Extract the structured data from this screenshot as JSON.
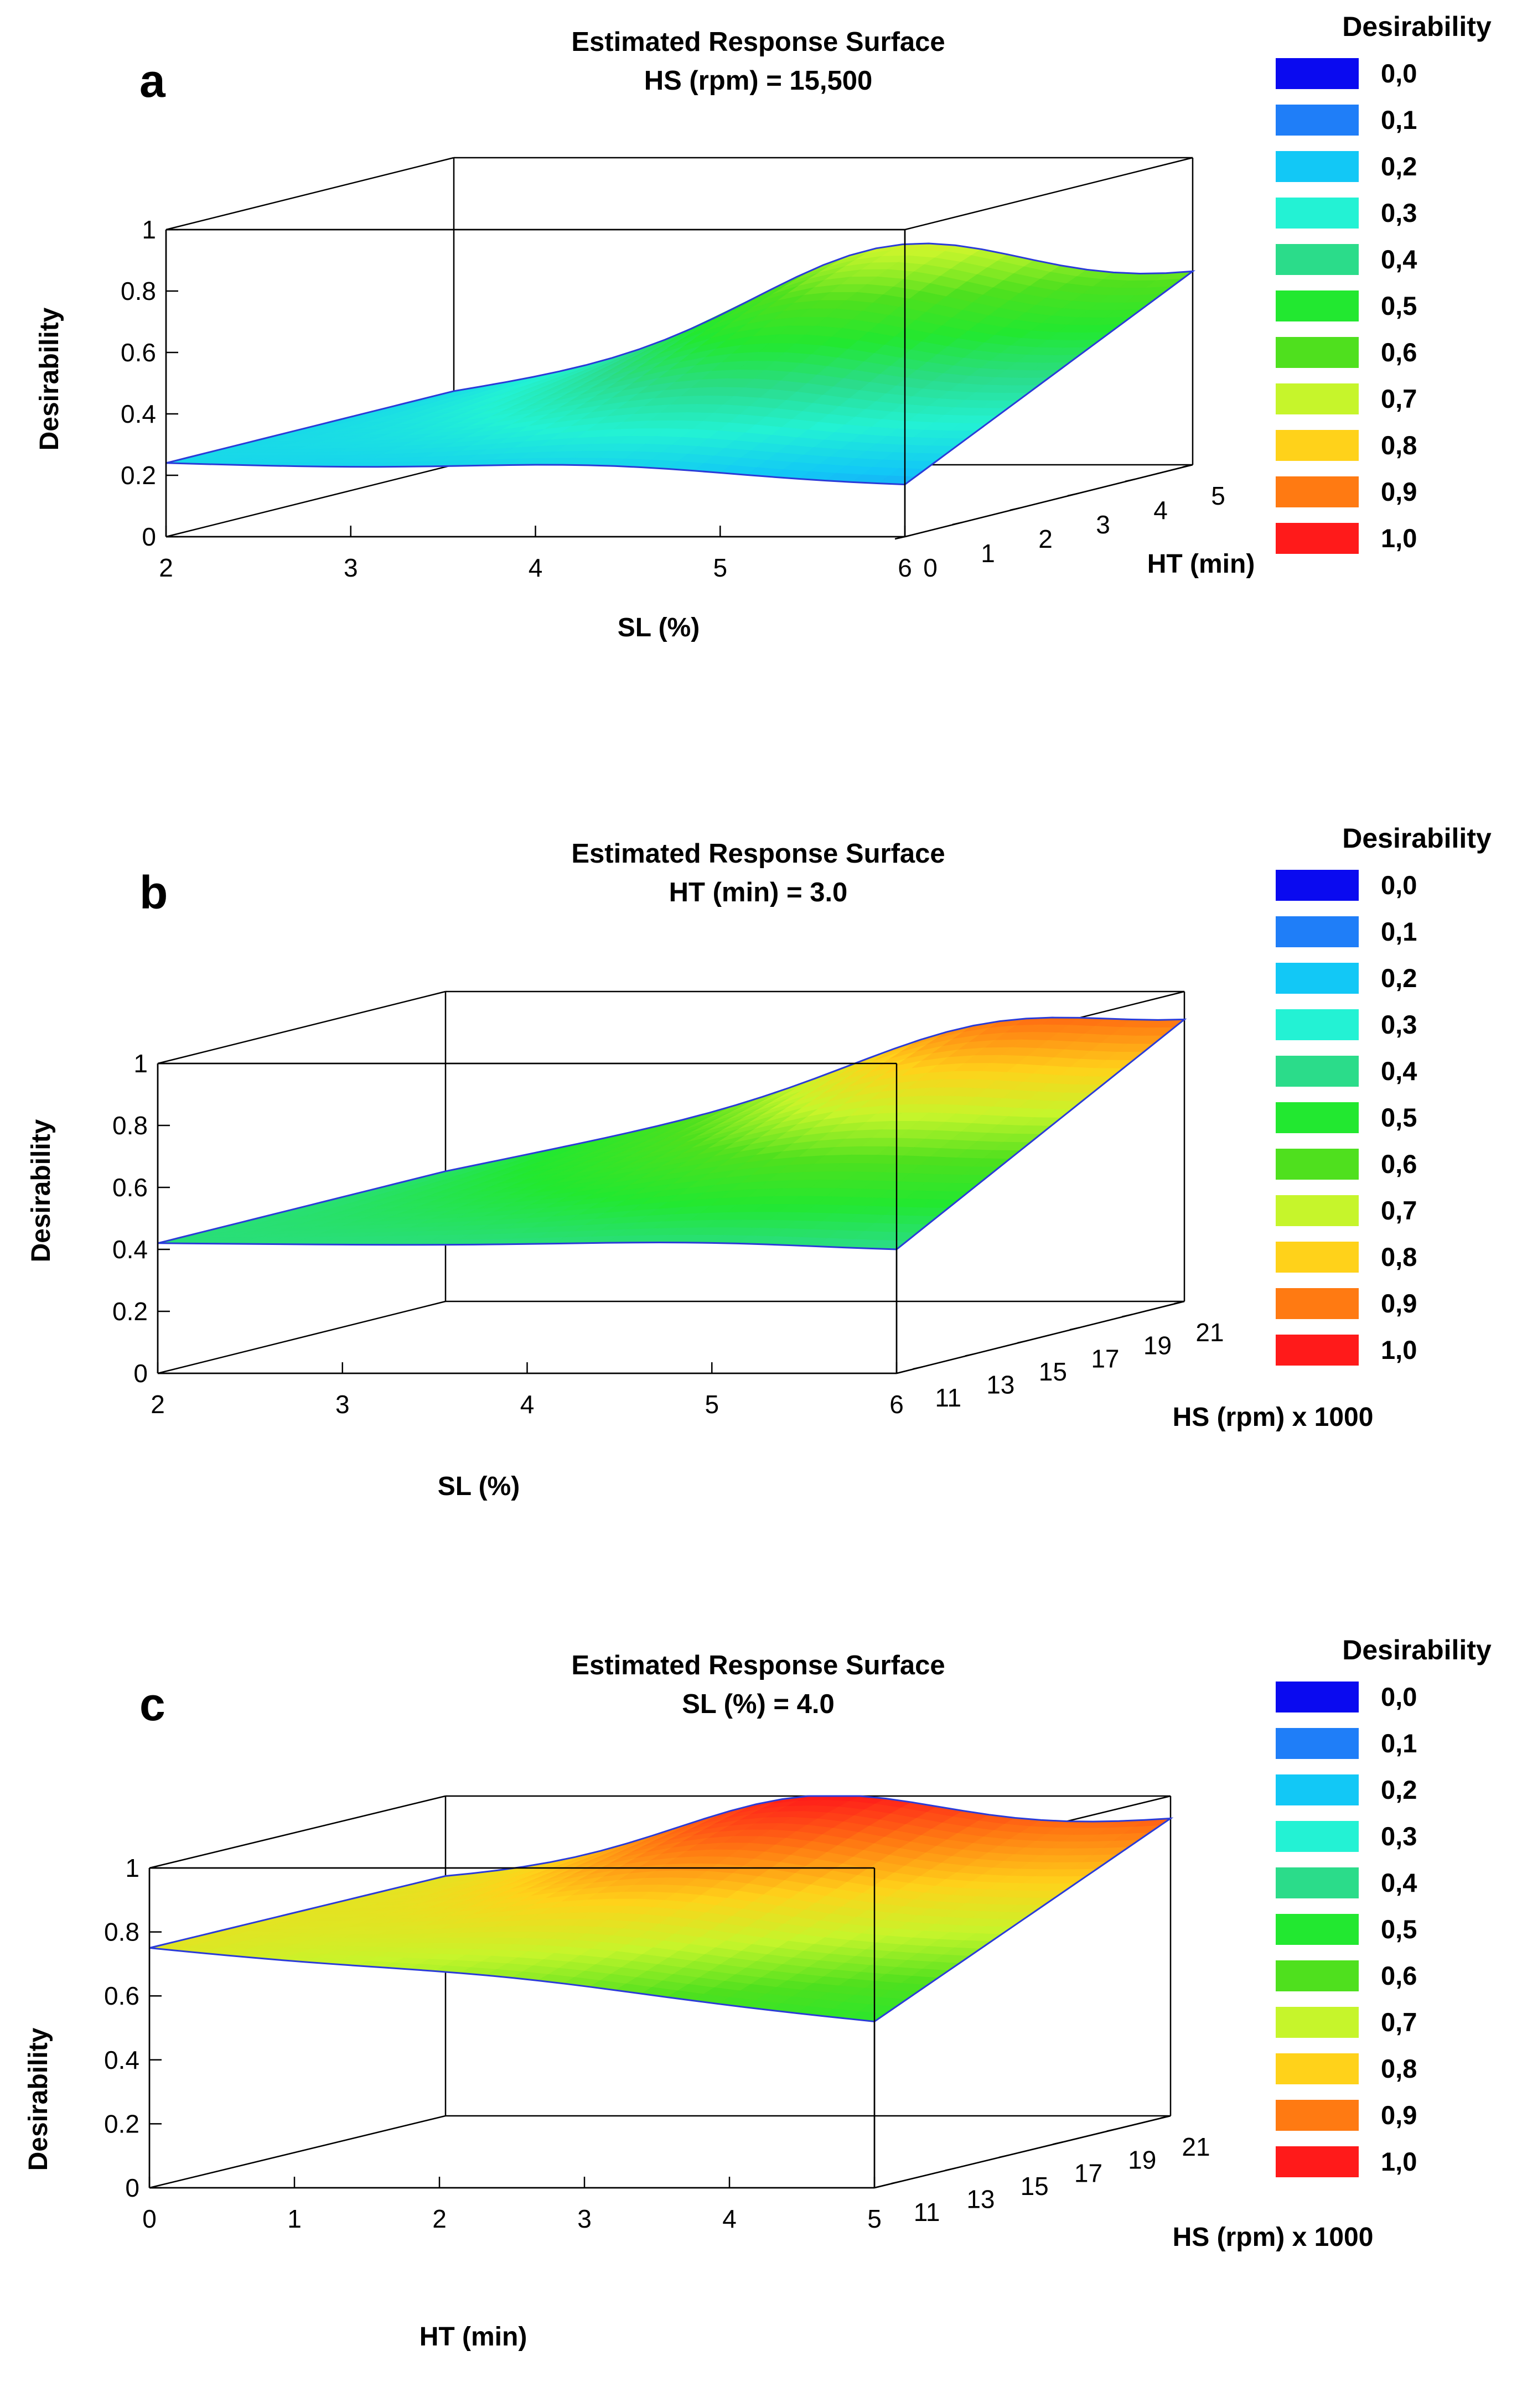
{
  "chart_data": [
    {
      "panel_letter": "a",
      "type": "surface3d",
      "title": "Estimated Response Surface",
      "subtitle": "HS (rpm) = 15,500",
      "x": {
        "label": "SL (%)",
        "range": [
          2,
          6
        ],
        "ticks": [
          "2",
          "3",
          "4",
          "5",
          "6"
        ]
      },
      "y": {
        "label": "HT (min)",
        "range": [
          0,
          5
        ],
        "ticks": [
          "0",
          "1",
          "2",
          "3",
          "4",
          "5"
        ]
      },
      "z": {
        "label": "Desirability",
        "range": [
          0,
          1
        ],
        "ticks": [
          "0",
          "0.2",
          "0.4",
          "0.6",
          "0.8",
          "1"
        ]
      },
      "corners": {
        "x_min_y_min": 0.24,
        "x_max_y_min": 0.17,
        "x_min_y_max": 0.24,
        "x_max_y_max": 0.63
      },
      "peak": {
        "x": 4.5,
        "y": 5,
        "z": 0.74
      }
    },
    {
      "panel_letter": "b",
      "type": "surface3d",
      "title": "Estimated Response Surface",
      "subtitle": "HT (min) = 3.0",
      "x": {
        "label": "SL (%)",
        "range": [
          2,
          6
        ],
        "ticks": [
          "2",
          "3",
          "4",
          "5",
          "6"
        ]
      },
      "y": {
        "label": "HS (rpm) x 1000",
        "range": [
          10,
          21
        ],
        "ticks": [
          "11",
          "13",
          "15",
          "17",
          "19",
          "21"
        ]
      },
      "z": {
        "label": "Desirability",
        "range": [
          0,
          1
        ],
        "ticks": [
          "0",
          "0.2",
          "0.4",
          "0.6",
          "0.8",
          "1"
        ]
      },
      "corners": {
        "x_min_y_min": 0.42,
        "x_max_y_min": 0.4,
        "x_min_y_max": 0.42,
        "x_max_y_max": 0.91
      },
      "peak": {
        "x": 5.3,
        "y": 21,
        "z": 1.0
      }
    },
    {
      "panel_letter": "c",
      "type": "surface3d",
      "title": "Estimated Response Surface",
      "subtitle": "SL (%) = 4.0",
      "x": {
        "label": "HT (min)",
        "range": [
          0,
          5
        ],
        "ticks": [
          "0",
          "1",
          "2",
          "3",
          "4",
          "5"
        ]
      },
      "y": {
        "label": "HS (rpm) x 1000",
        "range": [
          10,
          21
        ],
        "ticks": [
          "11",
          "13",
          "15",
          "17",
          "19",
          "21"
        ]
      },
      "z": {
        "label": "Desirability",
        "range": [
          0,
          1
        ],
        "ticks": [
          "0",
          "0.2",
          "0.4",
          "0.6",
          "0.8",
          "1"
        ]
      },
      "corners": {
        "x_min_y_min": 0.75,
        "x_max_y_min": 0.52,
        "x_min_y_max": 0.75,
        "x_max_y_max": 0.93
      },
      "peak": {
        "x": 2.5,
        "y": 21,
        "z": 1.0
      }
    }
  ],
  "legend": {
    "title": "Desirability",
    "levels": [
      {
        "label": "0,0",
        "color": "#0a0af0"
      },
      {
        "label": "0,1",
        "color": "#1f7ef8"
      },
      {
        "label": "0,2",
        "color": "#12c8f6"
      },
      {
        "label": "0,3",
        "color": "#23f2d4"
      },
      {
        "label": "0,4",
        "color": "#2bdc8a"
      },
      {
        "label": "0,5",
        "color": "#22e830"
      },
      {
        "label": "0,6",
        "color": "#4fe01e"
      },
      {
        "label": "0,7",
        "color": "#c6f52b"
      },
      {
        "label": "0,8",
        "color": "#ffd21a"
      },
      {
        "label": "0,9",
        "color": "#ff7a12"
      },
      {
        "label": "1,0",
        "color": "#ff1a1a"
      }
    ]
  }
}
